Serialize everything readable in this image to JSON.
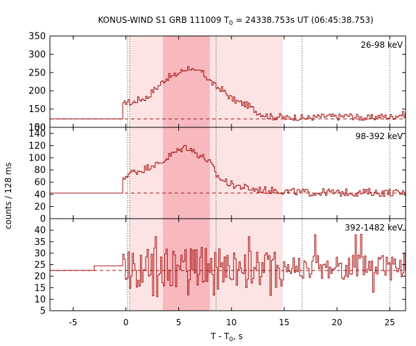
{
  "chart_data": {
    "type": "line",
    "title_main": "KONUS-WIND S1 GRB 111009 T",
    "title_sub": "0",
    "title_rest": " = 24338.753s UT (06:45:38.753)",
    "xlabel_main": "T - T",
    "xlabel_sub": "0",
    "xlabel_rest": ", s",
    "ylabel": "counts / 128 ms",
    "xlim": [
      -7.2,
      26.5
    ],
    "x_ticks": [
      "-5",
      "0",
      "5",
      "10",
      "15",
      "20",
      "25"
    ],
    "x_tick_values": [
      -5,
      0,
      5,
      10,
      15,
      20,
      25
    ],
    "vlines": [
      0.15,
      0.35,
      8.55,
      16.7,
      25.0
    ],
    "shaded_light": [
      0.35,
      14.85
    ],
    "shaded_dark": [
      3.5,
      7.95
    ],
    "colors": {
      "curve": "#a51010",
      "background": "#a51010",
      "shade_light": "#fde4e4",
      "shade_dark": "#f7b8be"
    },
    "panels": [
      {
        "name": "26-98 keV",
        "ylim": [
          100,
          350
        ],
        "y_ticks": [
          "100",
          "150",
          "200",
          "250",
          "300",
          "350"
        ],
        "y_tick_values": [
          100,
          150,
          200,
          250,
          300,
          350
        ],
        "bottom_label": "50",
        "background_level": 123,
        "x": [
          -7.2,
          -3.0,
          -2.0,
          -1.0,
          -0.3,
          0.0,
          0.5,
          1.0,
          1.5,
          2.0,
          2.5,
          3.0,
          3.5,
          4.0,
          4.5,
          5.0,
          5.5,
          6.0,
          6.5,
          7.0,
          7.5,
          8.0,
          8.5,
          9.0,
          9.5,
          10.0,
          10.5,
          11.0,
          11.5,
          12.0,
          12.5,
          13.0,
          13.5,
          14.0,
          14.5,
          15.0,
          16.0,
          17.0,
          18.0,
          19.0,
          20.0,
          21.0,
          22.0,
          23.0,
          24.0,
          25.0,
          26.0
        ],
        "y": [
          123,
          123,
          128,
          135,
          160,
          172,
          165,
          175,
          178,
          182,
          200,
          212,
          228,
          238,
          240,
          250,
          258,
          265,
          248,
          255,
          240,
          225,
          210,
          205,
          190,
          178,
          170,
          165,
          160,
          150,
          140,
          135,
          130,
          128,
          130,
          125,
          128,
          125,
          128,
          130,
          128,
          132,
          127,
          125,
          130,
          128,
          135
        ]
      },
      {
        "name": "98-392 keV",
        "ylim": [
          0,
          150
        ],
        "y_ticks": [
          "0",
          "20",
          "40",
          "60",
          "80",
          "100",
          "120",
          "140"
        ],
        "y_tick_values": [
          0,
          20,
          40,
          60,
          80,
          100,
          120,
          140
        ],
        "bottom_label": "",
        "background_level": 42,
        "x": [
          -7.2,
          -3.0,
          -2.0,
          -1.0,
          -0.3,
          0.0,
          0.5,
          1.0,
          1.5,
          2.0,
          2.5,
          3.0,
          3.5,
          4.0,
          4.5,
          5.0,
          5.5,
          6.0,
          6.5,
          7.0,
          7.5,
          8.0,
          8.5,
          9.0,
          9.5,
          10.0,
          10.5,
          11.0,
          11.5,
          12.0,
          12.5,
          13.0,
          13.5,
          14.0,
          14.5,
          15.0,
          16.0,
          17.0,
          18.0,
          19.0,
          20.0,
          21.0,
          22.0,
          23.0,
          24.0,
          25.0,
          26.0
        ],
        "y": [
          42,
          42,
          45,
          50,
          62,
          72,
          76,
          78,
          80,
          84,
          90,
          88,
          95,
          102,
          108,
          112,
          118,
          116,
          108,
          104,
          98,
          90,
          72,
          64,
          60,
          56,
          54,
          52,
          50,
          48,
          48,
          47,
          46,
          47,
          46,
          45,
          44,
          43,
          42,
          44,
          42,
          43,
          42,
          44,
          42,
          43,
          42
        ]
      },
      {
        "name": "392-1482 keV",
        "ylim": [
          5,
          45
        ],
        "y_ticks": [
          "5",
          "10",
          "15",
          "20",
          "25",
          "30",
          "35",
          "40"
        ],
        "y_tick_values": [
          5,
          10,
          15,
          20,
          25,
          30,
          35,
          40
        ],
        "bottom_label": "",
        "background_level": 22.5,
        "x": [
          -7.2,
          -5.0,
          -3.0,
          -2.0,
          -1.0,
          -0.5,
          0.0,
          1.0,
          2.0,
          3.0,
          4.0,
          5.0,
          6.0,
          7.0,
          8.0,
          9.0,
          10.0,
          11.0,
          12.0,
          13.0,
          14.0,
          15.0,
          16.0,
          17.0,
          18.0,
          19.0,
          20.0,
          21.0,
          22.0,
          23.0,
          24.0,
          25.0,
          26.0
        ],
        "y": [
          22.5,
          24,
          24.5,
          24.5,
          24.5,
          24.5,
          24,
          23,
          24,
          23,
          24,
          23,
          24,
          25,
          24,
          23,
          23,
          22,
          24,
          23,
          24,
          23,
          23,
          24,
          24,
          23,
          25,
          24,
          24,
          25,
          25,
          24,
          25
        ]
      }
    ]
  }
}
